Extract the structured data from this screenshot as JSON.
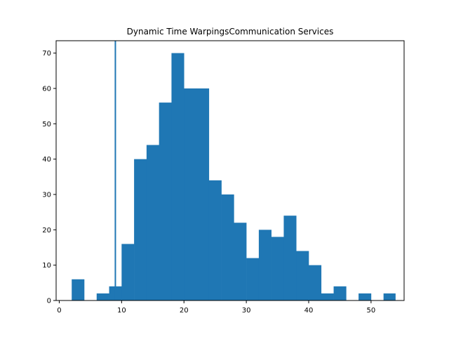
{
  "chart_data": {
    "type": "bar",
    "title": "Dynamic Time WarpingsCommunication Services",
    "xlabel": "",
    "ylabel": "",
    "xlim": [
      -0.5,
      55.3
    ],
    "ylim": [
      0,
      73.5
    ],
    "x_ticks": [
      0,
      10,
      20,
      30,
      40,
      50
    ],
    "y_ticks": [
      0,
      10,
      20,
      30,
      40,
      50,
      60,
      70
    ],
    "grid": false,
    "bar_color": "#1f77b4",
    "bin_edges": [
      2.0,
      4.0,
      6.0,
      8.0,
      10.0,
      12.0,
      14.0,
      16.0,
      18.0,
      20.0,
      22.0,
      24.0,
      26.0,
      28.0,
      30.0,
      32.0,
      34.0,
      36.0,
      38.0,
      40.0,
      42.0,
      44.0,
      46.0,
      48.0,
      50.0,
      52.0,
      53.9
    ],
    "counts": [
      6,
      0,
      2,
      4,
      16,
      40,
      44,
      56,
      70,
      60,
      60,
      34,
      30,
      22,
      12,
      20,
      18,
      24,
      14,
      10,
      2,
      4,
      0,
      2,
      0,
      2
    ],
    "vertical_line": {
      "x": 9.0,
      "color": "#1f77b4"
    }
  }
}
